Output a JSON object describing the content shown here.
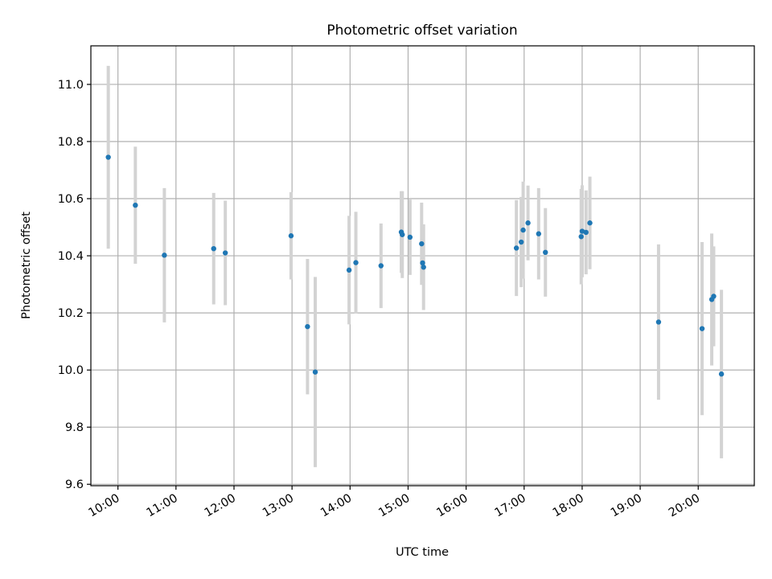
{
  "chart_data": {
    "type": "scatter",
    "title": "Photometric offset variation",
    "xlabel": "UTC time",
    "ylabel": "Photometric offset",
    "xlim": [
      "09:32",
      "20:58"
    ],
    "ylim": [
      9.595,
      11.135
    ],
    "grid": true,
    "x_ticks": [
      "10:00",
      "11:00",
      "12:00",
      "13:00",
      "14:00",
      "15:00",
      "16:00",
      "17:00",
      "18:00",
      "19:00",
      "20:00"
    ],
    "y_ticks": [
      "9.6",
      "9.8",
      "10.0",
      "10.2",
      "10.4",
      "10.6",
      "10.8",
      "11.0"
    ],
    "colors": {
      "points": "#1f77b4",
      "error_bars": "#d3d3d3",
      "grid": "#b0b0b0"
    },
    "series": [
      {
        "points": [
          {
            "x": "09:50",
            "y": 10.745,
            "err": 0.32
          },
          {
            "x": "10:18",
            "y": 10.577,
            "err": 0.205
          },
          {
            "x": "10:48",
            "y": 10.402,
            "err": 0.235
          },
          {
            "x": "11:39",
            "y": 10.425,
            "err": 0.195
          },
          {
            "x": "11:51",
            "y": 10.41,
            "err": 0.183
          },
          {
            "x": "12:59",
            "y": 10.47,
            "err": 0.153
          },
          {
            "x": "13:16",
            "y": 10.152,
            "err": 0.237
          },
          {
            "x": "13:24",
            "y": 9.993,
            "err": 0.333
          },
          {
            "x": "13:59",
            "y": 10.35,
            "err": 0.19
          },
          {
            "x": "14:06",
            "y": 10.376,
            "err": 0.178
          },
          {
            "x": "14:32",
            "y": 10.365,
            "err": 0.148
          },
          {
            "x": "14:53",
            "y": 10.483,
            "err": 0.143
          },
          {
            "x": "14:54",
            "y": 10.474,
            "err": 0.152
          },
          {
            "x": "15:02",
            "y": 10.465,
            "err": 0.132
          },
          {
            "x": "15:14",
            "y": 10.442,
            "err": 0.144
          },
          {
            "x": "15:15",
            "y": 10.375,
            "err": 0.076
          },
          {
            "x": "15:16",
            "y": 10.36,
            "err": 0.15
          },
          {
            "x": "16:52",
            "y": 10.427,
            "err": 0.168
          },
          {
            "x": "16:57",
            "y": 10.448,
            "err": 0.158
          },
          {
            "x": "16:59",
            "y": 10.49,
            "err": 0.17
          },
          {
            "x": "17:04",
            "y": 10.515,
            "err": 0.131
          },
          {
            "x": "17:15",
            "y": 10.477,
            "err": 0.16
          },
          {
            "x": "17:22",
            "y": 10.412,
            "err": 0.155
          },
          {
            "x": "17:59",
            "y": 10.467,
            "err": 0.167
          },
          {
            "x": "18:00",
            "y": 10.486,
            "err": 0.161
          },
          {
            "x": "18:04",
            "y": 10.482,
            "err": 0.147
          },
          {
            "x": "18:08",
            "y": 10.515,
            "err": 0.162
          },
          {
            "x": "19:19",
            "y": 10.168,
            "err": 0.272
          },
          {
            "x": "20:04",
            "y": 10.145,
            "err": 0.303
          },
          {
            "x": "20:14",
            "y": 10.247,
            "err": 0.231
          },
          {
            "x": "20:16",
            "y": 10.258,
            "err": 0.175
          },
          {
            "x": "20:24",
            "y": 9.986,
            "err": 0.295
          }
        ]
      }
    ]
  }
}
